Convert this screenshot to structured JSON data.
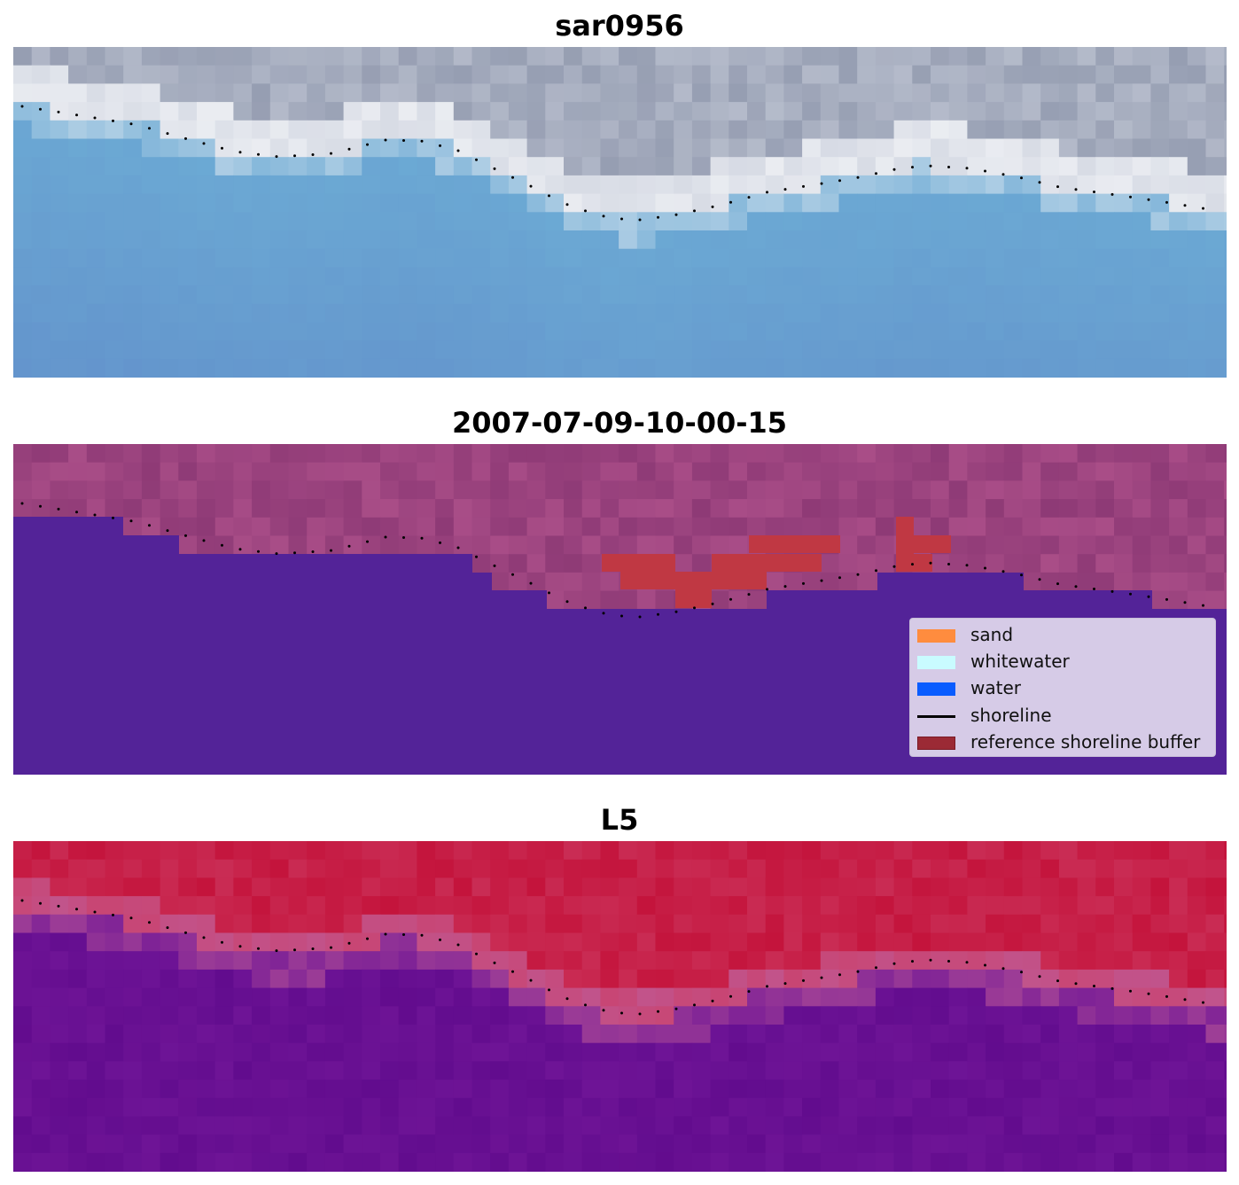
{
  "panels": [
    {
      "title": "sar0956"
    },
    {
      "title": "2007-07-09-10-00-15"
    },
    {
      "title": "L5"
    }
  ],
  "legend": {
    "items": [
      {
        "label": "sand",
        "kind": "patch",
        "color": "#ff8c3e"
      },
      {
        "label": "whitewater",
        "kind": "patch",
        "color": "#c9fbff"
      },
      {
        "label": "water",
        "kind": "patch",
        "color": "#0a5cff"
      },
      {
        "label": "shoreline",
        "kind": "line",
        "color": "#000000"
      },
      {
        "label": "reference shoreline buffer",
        "kind": "patch",
        "color": "#9b2a35"
      }
    ]
  },
  "colors": {
    "classified_water": "#532398",
    "buffer": "#c03843"
  }
}
